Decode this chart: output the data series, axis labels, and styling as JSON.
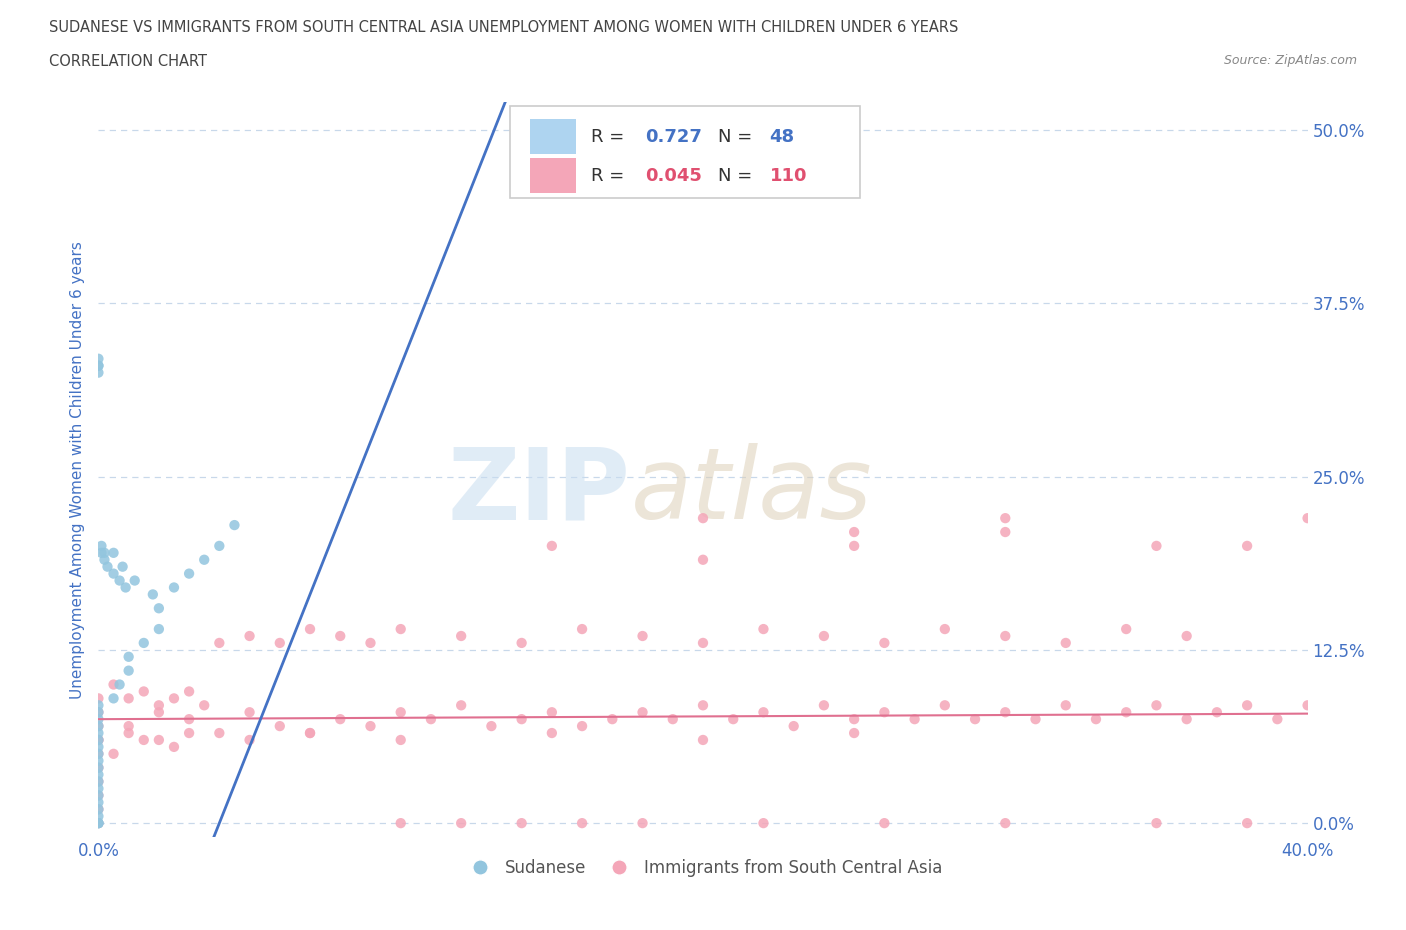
{
  "title_line1": "SUDANESE VS IMMIGRANTS FROM SOUTH CENTRAL ASIA UNEMPLOYMENT AMONG WOMEN WITH CHILDREN UNDER 6 YEARS",
  "title_line2": "CORRELATION CHART",
  "source": "Source: ZipAtlas.com",
  "ylabel": "Unemployment Among Women with Children Under 6 years",
  "xlim": [
    0.0,
    0.4
  ],
  "ylim": [
    -0.01,
    0.52
  ],
  "xtick_vals": [
    0.0,
    0.1,
    0.2,
    0.3,
    0.4
  ],
  "xtick_labels": [
    "0.0%",
    "",
    "",
    "",
    "40.0%"
  ],
  "ytick_vals": [
    0.0,
    0.125,
    0.25,
    0.375,
    0.5
  ],
  "ytick_labels_right": [
    "0.0%",
    "12.5%",
    "25.0%",
    "37.5%",
    "50.0%"
  ],
  "color_sudanese": "#92c5de",
  "color_asia": "#f4a6b8",
  "color_line_sud": "#4472c4",
  "color_line_asia": "#e07090",
  "color_tick": "#4472c4",
  "color_grid": "#c8d8ea",
  "color_ylabel": "#4472c4",
  "legend_r_sudanese": "0.727",
  "legend_n_sudanese": "48",
  "legend_r_asia": "0.045",
  "legend_n_asia": "110",
  "sud_x": [
    0.0,
    0.0,
    0.0,
    0.0,
    0.0,
    0.0,
    0.0,
    0.0,
    0.0,
    0.0,
    0.0,
    0.0,
    0.0,
    0.0,
    0.0,
    0.0,
    0.0,
    0.0,
    0.0,
    0.0,
    0.005,
    0.007,
    0.01,
    0.01,
    0.015,
    0.02,
    0.02,
    0.025,
    0.03,
    0.035,
    0.04,
    0.045,
    0.005,
    0.008,
    0.012,
    0.018,
    0.0,
    0.0,
    0.001,
    0.002,
    0.003,
    0.005,
    0.007,
    0.009,
    0.0,
    0.0,
    0.001,
    0.002
  ],
  "sud_y": [
    0.0,
    0.0,
    0.0,
    0.005,
    0.01,
    0.015,
    0.02,
    0.025,
    0.03,
    0.035,
    0.04,
    0.045,
    0.05,
    0.055,
    0.06,
    0.065,
    0.07,
    0.075,
    0.08,
    0.085,
    0.09,
    0.1,
    0.11,
    0.12,
    0.13,
    0.14,
    0.155,
    0.17,
    0.18,
    0.19,
    0.2,
    0.215,
    0.195,
    0.185,
    0.175,
    0.165,
    0.33,
    0.335,
    0.195,
    0.19,
    0.185,
    0.18,
    0.175,
    0.17,
    0.33,
    0.325,
    0.2,
    0.195
  ],
  "asia_x": [
    0.0,
    0.0,
    0.0,
    0.0,
    0.0,
    0.0,
    0.0,
    0.0,
    0.0,
    0.0,
    0.005,
    0.01,
    0.015,
    0.02,
    0.025,
    0.03,
    0.04,
    0.05,
    0.06,
    0.07,
    0.08,
    0.09,
    0.1,
    0.11,
    0.12,
    0.13,
    0.14,
    0.15,
    0.16,
    0.17,
    0.18,
    0.19,
    0.2,
    0.21,
    0.22,
    0.23,
    0.24,
    0.25,
    0.26,
    0.27,
    0.28,
    0.29,
    0.3,
    0.31,
    0.32,
    0.33,
    0.34,
    0.35,
    0.36,
    0.37,
    0.38,
    0.39,
    0.4,
    0.005,
    0.01,
    0.015,
    0.02,
    0.025,
    0.03,
    0.035,
    0.04,
    0.05,
    0.06,
    0.07,
    0.08,
    0.09,
    0.1,
    0.12,
    0.14,
    0.16,
    0.18,
    0.2,
    0.22,
    0.24,
    0.26,
    0.28,
    0.3,
    0.32,
    0.34,
    0.36,
    0.38,
    0.4,
    0.15,
    0.2,
    0.25,
    0.3,
    0.35,
    0.2,
    0.25,
    0.3,
    0.1,
    0.12,
    0.14,
    0.16,
    0.18,
    0.22,
    0.26,
    0.3,
    0.35,
    0.38,
    0.0,
    0.01,
    0.02,
    0.03,
    0.05,
    0.07,
    0.1,
    0.15,
    0.2,
    0.25
  ],
  "asia_y": [
    0.0,
    0.01,
    0.02,
    0.03,
    0.04,
    0.05,
    0.06,
    0.07,
    0.08,
    0.09,
    0.05,
    0.07,
    0.06,
    0.08,
    0.055,
    0.075,
    0.065,
    0.08,
    0.07,
    0.065,
    0.075,
    0.07,
    0.08,
    0.075,
    0.085,
    0.07,
    0.075,
    0.08,
    0.07,
    0.075,
    0.08,
    0.075,
    0.085,
    0.075,
    0.08,
    0.07,
    0.085,
    0.075,
    0.08,
    0.075,
    0.085,
    0.075,
    0.08,
    0.075,
    0.085,
    0.075,
    0.08,
    0.085,
    0.075,
    0.08,
    0.085,
    0.075,
    0.085,
    0.1,
    0.09,
    0.095,
    0.085,
    0.09,
    0.095,
    0.085,
    0.13,
    0.135,
    0.13,
    0.14,
    0.135,
    0.13,
    0.14,
    0.135,
    0.13,
    0.14,
    0.135,
    0.13,
    0.14,
    0.135,
    0.13,
    0.14,
    0.135,
    0.13,
    0.14,
    0.135,
    0.2,
    0.22,
    0.2,
    0.22,
    0.2,
    0.22,
    0.2,
    0.19,
    0.21,
    0.21,
    -0.01,
    -0.01,
    -0.015,
    -0.01,
    -0.015,
    -0.01,
    -0.015,
    -0.01,
    -0.015,
    -0.01,
    0.06,
    0.065,
    0.06,
    0.065,
    0.06,
    0.065,
    0.06,
    0.065,
    0.06,
    0.065
  ]
}
